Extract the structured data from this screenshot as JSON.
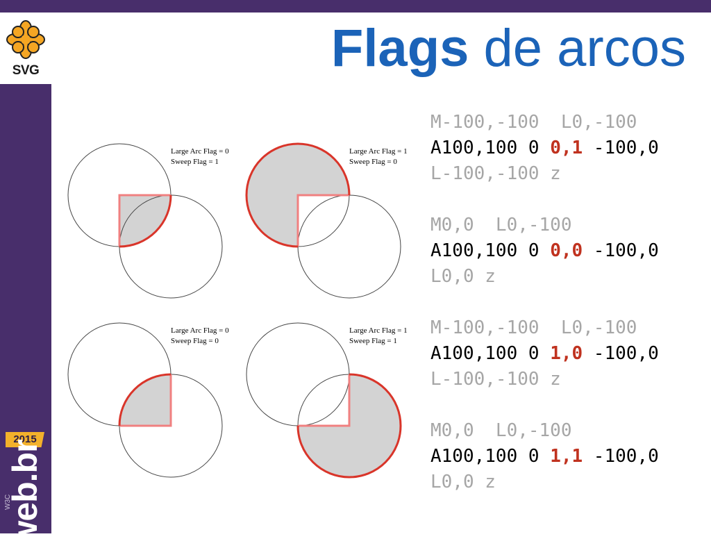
{
  "slide": {
    "title_bold": "Flags",
    "title_rest": " de arcos"
  },
  "branding": {
    "logo_text": "SVG",
    "badge_year": "2015",
    "webbr_text": "web.br",
    "w3c_text": "W3C"
  },
  "diagrams": [
    {
      "large_arc_label": "Large Arc Flag = 0",
      "sweep_label": "Sweep Flag = 1"
    },
    {
      "large_arc_label": "Large Arc Flag = 1",
      "sweep_label": "Sweep Flag = 0"
    },
    {
      "large_arc_label": "Large Arc Flag = 0",
      "sweep_label": "Sweep Flag = 0"
    },
    {
      "large_arc_label": "Large Arc Flag = 1",
      "sweep_label": "Sweep Flag = 1"
    }
  ],
  "code": [
    {
      "line1": "M-100,-100  L0,-100",
      "line2_pre": "A100,100 0 ",
      "line2_flags": "0,1",
      "line2_post": " -100,0",
      "line3": "L-100,-100 z"
    },
    {
      "line1": "M0,0  L0,-100",
      "line2_pre": "A100,100 0 ",
      "line2_flags": "0,0",
      "line2_post": " -100,0",
      "line3": "L0,0 z"
    },
    {
      "line1": "M-100,-100  L0,-100",
      "line2_pre": "A100,100 0 ",
      "line2_flags": "1,0",
      "line2_post": " -100,0",
      "line3": "L-100,-100 z"
    },
    {
      "line1": "M0,0  L0,-100",
      "line2_pre": "A100,100 0 ",
      "line2_flags": "1,1",
      "line2_post": " -100,0",
      "line3": "L0,0 z"
    }
  ],
  "colors": {
    "accent_purple": "#482e6b",
    "title_blue": "#1b63b8",
    "flag_red": "#c0321f",
    "arc_red": "#d9352a",
    "fill_gray": "#d3d3d3"
  }
}
